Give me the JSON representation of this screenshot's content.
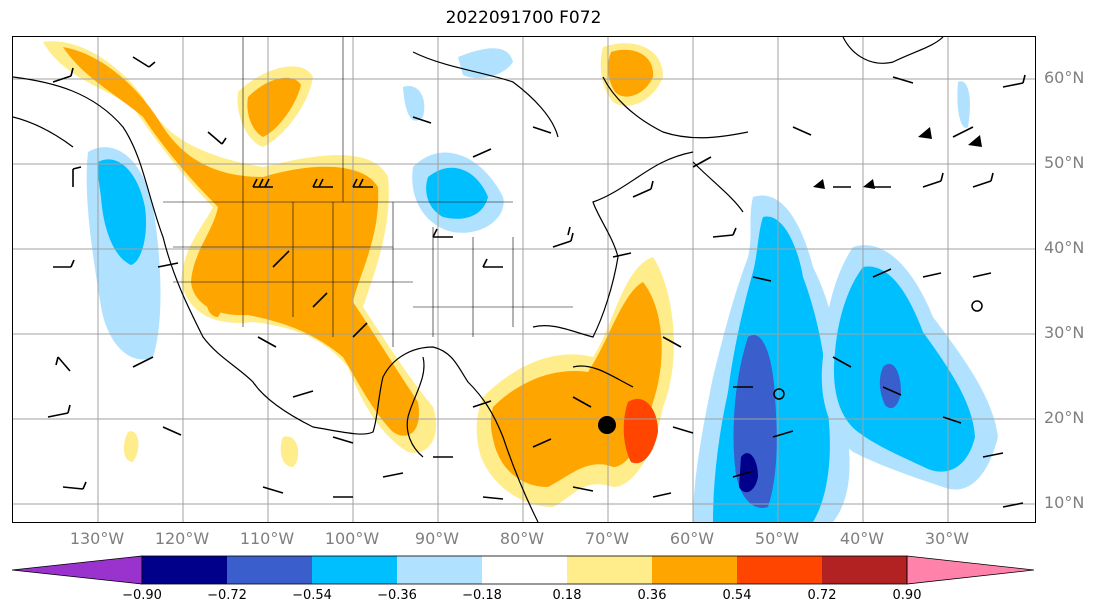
{
  "title": "2022091700 F072",
  "lat_labels": [
    "60°N",
    "50°N",
    "40°N",
    "30°N",
    "20°N",
    "10°N"
  ],
  "lon_labels": [
    "130°W",
    "120°W",
    "110°W",
    "100°W",
    "90°W",
    "80°W",
    "70°W",
    "60°W",
    "50°W",
    "40°W",
    "30°W"
  ],
  "colorbar": {
    "ticks": [
      "−0.90",
      "−0.72",
      "−0.54",
      "−0.36",
      "−0.18",
      "0.18",
      "0.36",
      "0.54",
      "0.72",
      "0.90"
    ],
    "colors": [
      "#9a32cd",
      "#00008b",
      "#3a5fcd",
      "#00bfff",
      "#b0e2ff",
      "#ffffff",
      "#ffec8b",
      "#ffa500",
      "#ff4500",
      "#b22222",
      "#ff82ab"
    ]
  }
}
